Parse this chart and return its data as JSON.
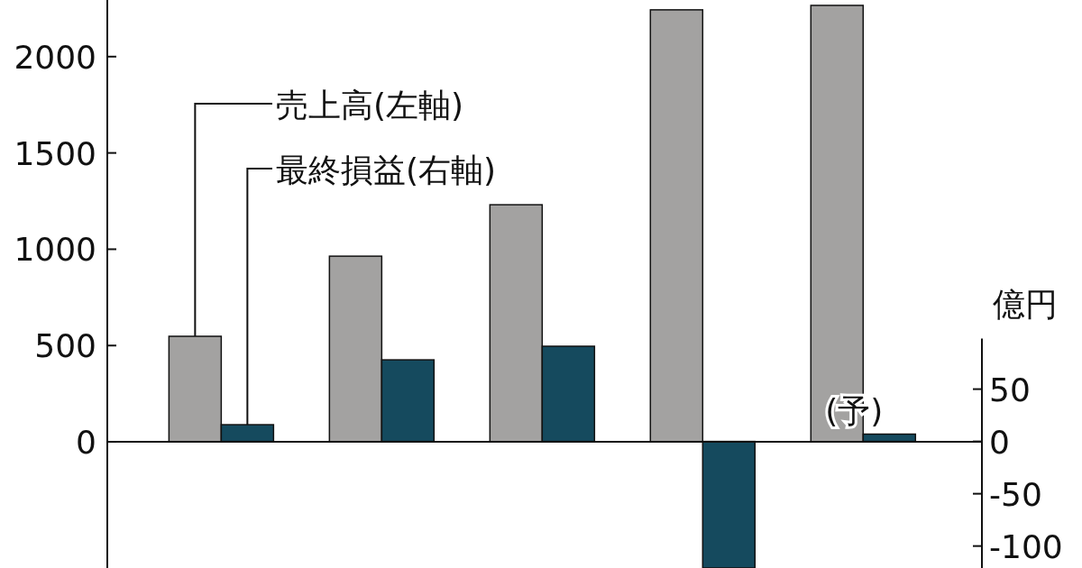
{
  "chart_data": {
    "type": "bar",
    "categories": [
      null,
      null,
      null,
      null,
      null
    ],
    "series": [
      {
        "name": "売上高(左軸)",
        "color": "#a3a2a1",
        "values": [
          548,
          964,
          1231,
          2243,
          2266
        ]
      },
      {
        "name": "最終損益(右軸)",
        "color": "#154a5e",
        "axis": "y2",
        "values": [
          16,
          78,
          91,
          -121,
          7
        ]
      }
    ],
    "ylim": [
      -655,
      2294
    ],
    "yticks": [
      0,
      500,
      1000,
      1500,
      2000
    ],
    "y2lim": [
      -121,
      422
    ],
    "y2ticks": [
      -100,
      -50,
      0,
      50
    ],
    "y2label": "億円",
    "annotations": [
      "(予)"
    ],
    "legend": false
  }
}
